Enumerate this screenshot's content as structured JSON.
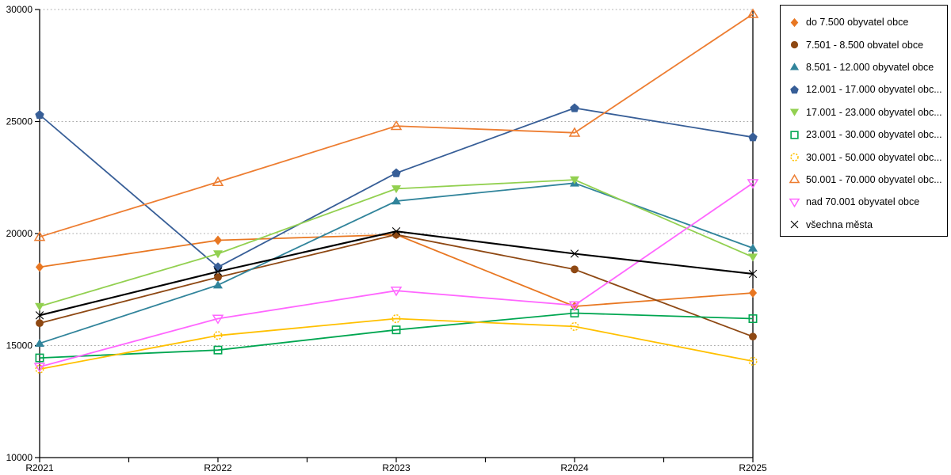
{
  "chart_data": {
    "type": "line",
    "title": "",
    "xlabel": "",
    "ylabel": "",
    "x_categories": [
      "R2021",
      "R2022",
      "R2023",
      "R2024",
      "R2025"
    ],
    "ylim": [
      10000,
      30000
    ],
    "y_ticks": [
      10000,
      15000,
      20000,
      25000,
      30000
    ],
    "grid": "horizontal-dotted",
    "legend_position": "right",
    "series": [
      {
        "label": "do 7.500 obyvatel obce",
        "color": "#E87722",
        "marker": "diamond-filled",
        "values": [
          18500,
          19700,
          19950,
          16750,
          17350
        ]
      },
      {
        "label": "7.501 - 8.500 obvatel obce",
        "color": "#8E4813",
        "marker": "circle-filled",
        "values": [
          16000,
          18050,
          19950,
          18400,
          15400
        ]
      },
      {
        "label": "8.501 - 12.000 obyvatel obce",
        "color": "#31849B",
        "marker": "triangle-up-filled",
        "values": [
          15100,
          17700,
          21450,
          22250,
          19350
        ]
      },
      {
        "label": "12.001 - 17.000 obyvatel obc...",
        "color": "#375E97",
        "marker": "pentagon-filled",
        "values": [
          25300,
          18500,
          22700,
          25600,
          24300
        ]
      },
      {
        "label": "17.001 - 23.000 obyvatel obc...",
        "color": "#92D050",
        "marker": "triangle-down-filled",
        "values": [
          16750,
          19100,
          22000,
          22400,
          18950
        ]
      },
      {
        "label": "23.001 - 30.000 obyvatel obc...",
        "color": "#00A651",
        "marker": "square-open",
        "values": [
          14450,
          14800,
          15700,
          16450,
          16200
        ]
      },
      {
        "label": "30.001 - 50.000 obyvatel obc...",
        "color": "#FFC000",
        "marker": "circle-open",
        "values": [
          13950,
          15450,
          16200,
          15850,
          14300
        ]
      },
      {
        "label": "50.001 - 70.000 obyvatel obc...",
        "color": "#ED7D31",
        "marker": "triangle-up-open",
        "values": [
          19850,
          22300,
          24800,
          24500,
          29800
        ]
      },
      {
        "label": "nad 70.001 obyvatel obce",
        "color": "#FF66FF",
        "marker": "triangle-down-open",
        "values": [
          14050,
          16200,
          17450,
          16800,
          22250
        ]
      },
      {
        "label": "všechna města",
        "color": "#000000",
        "marker": "x",
        "values": [
          16350,
          18300,
          20100,
          19100,
          18200
        ]
      }
    ]
  },
  "colors": {
    "background": "#FFFFFF",
    "gridline": "#ABABAB",
    "axis": "#000000",
    "legend_border": "#000000"
  }
}
